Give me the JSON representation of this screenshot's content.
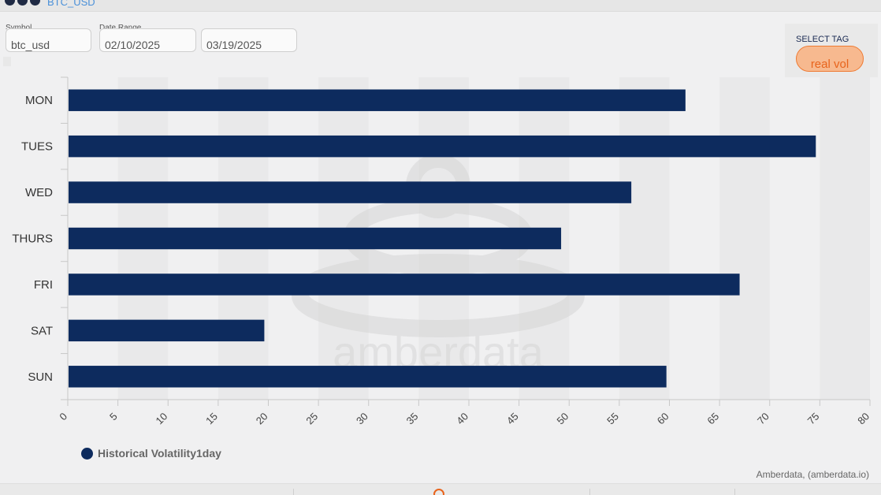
{
  "header": {
    "ticker": "BTC_USD"
  },
  "controls": {
    "symbol_label": "Symbol",
    "symbol_value": "btc_usd",
    "date_range_label": "Date Range",
    "date_start": "02/10/2025",
    "date_end": "03/19/2025",
    "select_tag_label": "SELECT TAG",
    "selected_tag": "real vol"
  },
  "watermark": {
    "text": "amberdata"
  },
  "credit": "Amberdata, (amberdata.io)",
  "colors": {
    "bar": "#0d2b5e",
    "accent": "#e8641c",
    "accent_fill": "#f7b98f",
    "label": "#1a2a52"
  },
  "chart_data": {
    "type": "bar",
    "orientation": "horizontal",
    "categories": [
      "MON",
      "TUES",
      "WED",
      "THURS",
      "FRI",
      "SAT",
      "SUN"
    ],
    "series": [
      {
        "name": "Historical Volatility1day",
        "values": [
          61.6,
          74.6,
          56.2,
          49.2,
          67.0,
          19.6,
          59.7
        ]
      }
    ],
    "xlim": [
      0,
      80
    ],
    "x_ticks": [
      0,
      5,
      10,
      15,
      20,
      25,
      30,
      35,
      40,
      45,
      50,
      55,
      60,
      65,
      70,
      75,
      80
    ],
    "grid": false,
    "legend": "bottom-left"
  }
}
